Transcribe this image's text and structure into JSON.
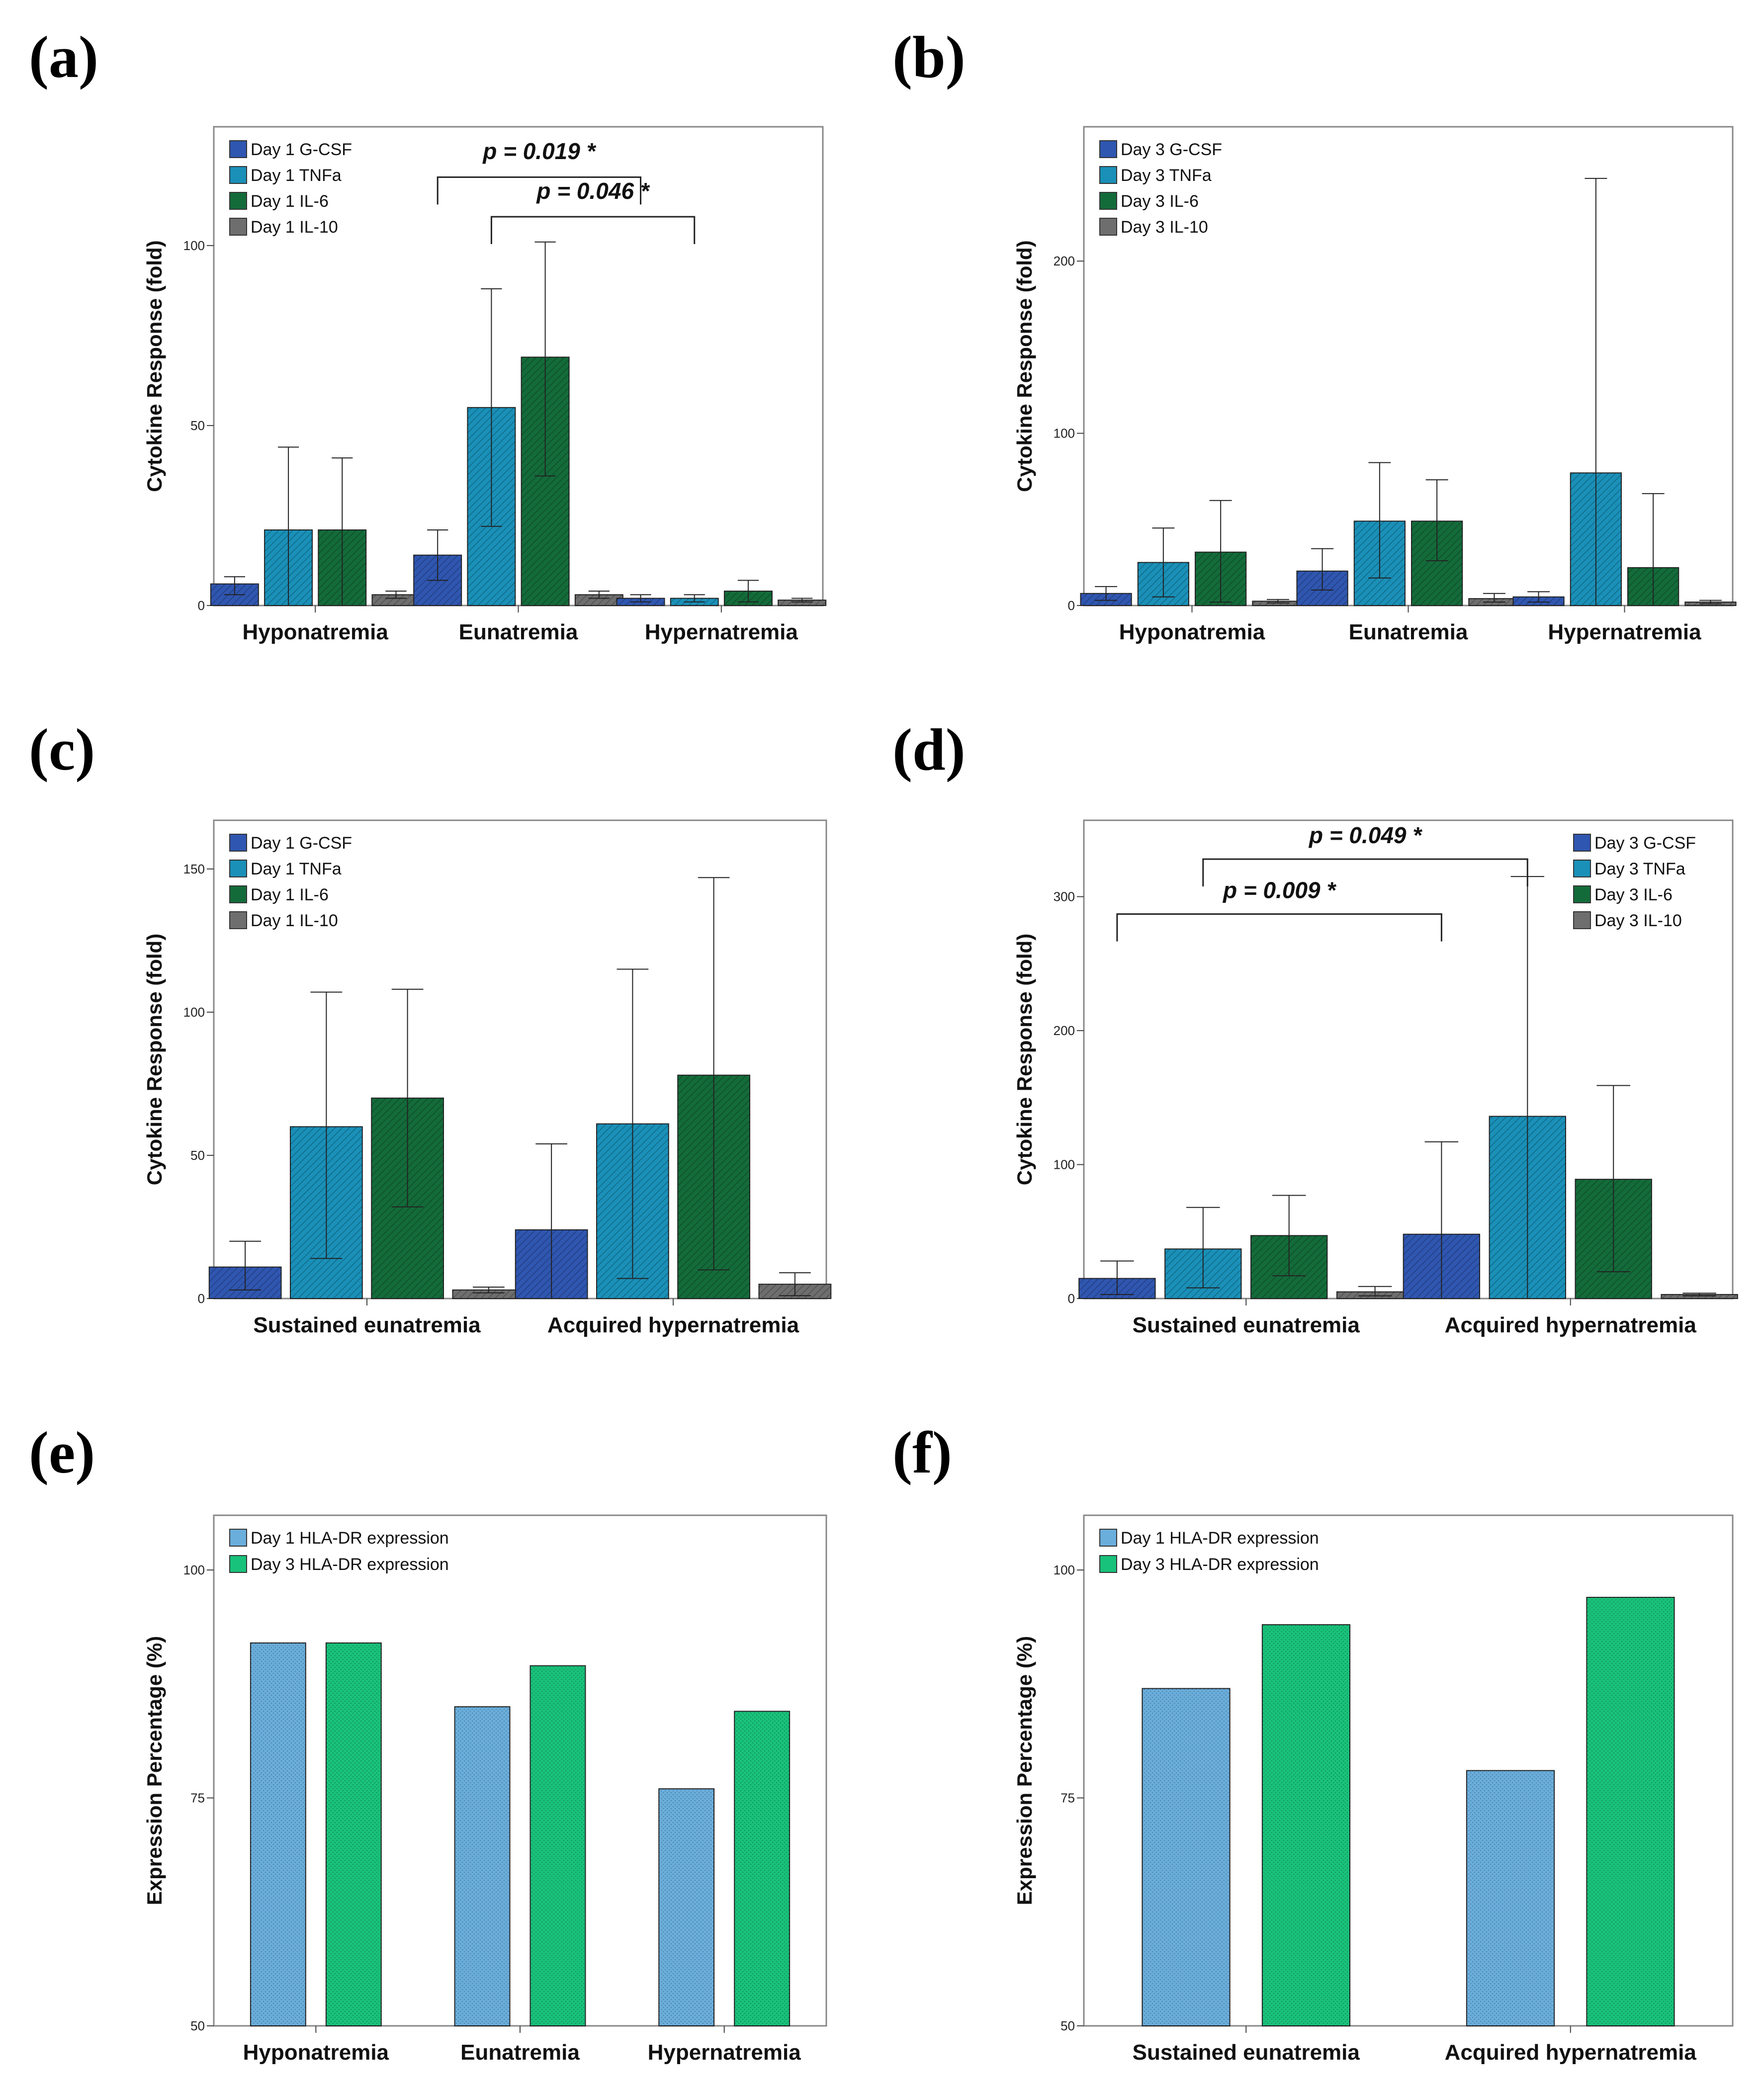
{
  "colors": {
    "gcsf": "#2f56b0",
    "tnfa": "#1a90b8",
    "il6": "#146b3a",
    "il10": "#6e6e6e",
    "hla_day1": "#6aaedc",
    "hla_day3": "#19c27a"
  },
  "chart_data": [
    {
      "id": "a",
      "panel_label": "(a)",
      "type": "bar",
      "title": "",
      "xlabel": "",
      "ylabel": "Cytokine Response (fold)",
      "ylim": [
        0,
        133
      ],
      "yticks": [
        0,
        50,
        100
      ],
      "categories": [
        "Hyponatremia",
        "Eunatremia",
        "Hypernatremia"
      ],
      "legend_position": "top-left",
      "series": [
        {
          "name": "Day 1 G-CSF",
          "color_key": "gcsf",
          "values": [
            6,
            14,
            2
          ],
          "err_low": [
            3,
            7,
            1
          ],
          "err_high": [
            8,
            21,
            3
          ]
        },
        {
          "name": "Day 1 TNFa",
          "color_key": "tnfa",
          "values": [
            21,
            55,
            2
          ],
          "err_low": [
            0,
            22,
            1
          ],
          "err_high": [
            44,
            88,
            3
          ]
        },
        {
          "name": "Day 1 IL-6",
          "color_key": "il6",
          "values": [
            21,
            69,
            4
          ],
          "err_low": [
            0,
            36,
            1
          ],
          "err_high": [
            41,
            101,
            7
          ]
        },
        {
          "name": "Day 1 IL-10",
          "color_key": "il10",
          "values": [
            3,
            3,
            1.5
          ],
          "err_low": [
            2,
            2,
            1
          ],
          "err_high": [
            4,
            4,
            2
          ]
        }
      ],
      "annotations": [
        {
          "text": "p = 0.019 *",
          "from": [
            1,
            0
          ],
          "to": [
            2,
            0
          ],
          "bracket_y": 119,
          "text_y": 124
        },
        {
          "text": "p = 0.046 *",
          "from": [
            1,
            1
          ],
          "to": [
            2,
            1
          ],
          "bracket_y": 108,
          "text_y": 113
        }
      ]
    },
    {
      "id": "b",
      "panel_label": "(b)",
      "type": "bar",
      "title": "",
      "xlabel": "",
      "ylabel": "Cytokine Response (fold)",
      "ylim": [
        0,
        278
      ],
      "yticks": [
        0,
        100,
        200
      ],
      "categories": [
        "Hyponatremia",
        "Eunatremia",
        "Hypernatremia"
      ],
      "legend_position": "top-left",
      "series": [
        {
          "name": "Day 3 G-CSF",
          "color_key": "gcsf",
          "values": [
            7,
            20,
            5
          ],
          "err_low": [
            3,
            9,
            2
          ],
          "err_high": [
            11,
            33,
            8
          ]
        },
        {
          "name": "Day 3 TNFa",
          "color_key": "tnfa",
          "values": [
            25,
            49,
            77
          ],
          "err_low": [
            5,
            16,
            0
          ],
          "err_high": [
            45,
            83,
            248
          ]
        },
        {
          "name": "Day 3 IL-6",
          "color_key": "il6",
          "values": [
            31,
            49,
            22
          ],
          "err_low": [
            2,
            26,
            0
          ],
          "err_high": [
            61,
            73,
            65
          ]
        },
        {
          "name": "Day 3 IL-10",
          "color_key": "il10",
          "values": [
            2.5,
            4,
            2
          ],
          "err_low": [
            1.5,
            2,
            1
          ],
          "err_high": [
            3.5,
            7,
            3
          ]
        }
      ],
      "annotations": []
    },
    {
      "id": "c",
      "panel_label": "(c)",
      "type": "bar",
      "title": "",
      "xlabel": "",
      "ylabel": "Cytokine Response (fold)",
      "ylim": [
        0,
        167
      ],
      "yticks": [
        0,
        50,
        100,
        150
      ],
      "categories": [
        "Sustained eunatremia",
        "Acquired hypernatremia"
      ],
      "legend_position": "top-left",
      "series": [
        {
          "name": "Day 1 G-CSF",
          "color_key": "gcsf",
          "values": [
            11,
            24
          ],
          "err_low": [
            3,
            0
          ],
          "err_high": [
            20,
            54
          ]
        },
        {
          "name": "Day 1 TNFa",
          "color_key": "tnfa",
          "values": [
            60,
            61
          ],
          "err_low": [
            14,
            7
          ],
          "err_high": [
            107,
            115
          ]
        },
        {
          "name": "Day 1 IL-6",
          "color_key": "il6",
          "values": [
            70,
            78
          ],
          "err_low": [
            32,
            10
          ],
          "err_high": [
            108,
            147
          ]
        },
        {
          "name": "Day 1 IL-10",
          "color_key": "il10",
          "values": [
            3,
            5
          ],
          "err_low": [
            2,
            1
          ],
          "err_high": [
            4,
            9
          ]
        }
      ],
      "annotations": []
    },
    {
      "id": "d",
      "panel_label": "(d)",
      "type": "bar",
      "title": "",
      "xlabel": "",
      "ylabel": "Cytokine Response (fold)",
      "ylim": [
        0,
        357
      ],
      "yticks": [
        0,
        100,
        200,
        300
      ],
      "categories": [
        "Sustained eunatremia",
        "Acquired hypernatremia"
      ],
      "legend_position": "top-right",
      "series": [
        {
          "name": "Day 3 G-CSF",
          "color_key": "gcsf",
          "values": [
            15,
            48
          ],
          "err_low": [
            3,
            0
          ],
          "err_high": [
            28,
            117
          ]
        },
        {
          "name": "Day 3 TNFa",
          "color_key": "tnfa",
          "values": [
            37,
            136
          ],
          "err_low": [
            8,
            0
          ],
          "err_high": [
            68,
            315
          ]
        },
        {
          "name": "Day 3 IL-6",
          "color_key": "il6",
          "values": [
            47,
            89
          ],
          "err_low": [
            17,
            20
          ],
          "err_high": [
            77,
            159
          ]
        },
        {
          "name": "Day 3 IL-10",
          "color_key": "il10",
          "values": [
            5,
            3
          ],
          "err_low": [
            2,
            2
          ],
          "err_high": [
            9,
            4
          ]
        }
      ],
      "annotations": [
        {
          "text": "p = 0.049 *",
          "from": [
            0,
            1
          ],
          "to": [
            1,
            1
          ],
          "bracket_y": 328,
          "text_y": 340
        },
        {
          "text": "p = 0.009 *",
          "from": [
            0,
            0
          ],
          "to": [
            1,
            0
          ],
          "bracket_y": 287,
          "text_y": 299
        }
      ]
    },
    {
      "id": "e",
      "panel_label": "(e)",
      "type": "bar",
      "title": "",
      "xlabel": "",
      "ylabel": "Expression Percentage (%)",
      "ylim": [
        50,
        106
      ],
      "yticks": [
        50,
        75,
        100
      ],
      "categories": [
        "Hyponatremia",
        "Eunatremia",
        "Hypernatremia"
      ],
      "legend_position": "top-left",
      "series": [
        {
          "name": "Day 1 HLA-DR expression",
          "color_key": "hla_day1",
          "values": [
            92,
            85,
            76
          ]
        },
        {
          "name": "Day 3 HLA-DR expression",
          "color_key": "hla_day3",
          "values": [
            92,
            89.5,
            84.5
          ]
        }
      ],
      "annotations": []
    },
    {
      "id": "f",
      "panel_label": "(f)",
      "type": "bar",
      "title": "",
      "xlabel": "",
      "ylabel": "Expression Percentage (%)",
      "ylim": [
        50,
        106
      ],
      "yticks": [
        50,
        75,
        100
      ],
      "categories": [
        "Sustained eunatremia",
        "Acquired hypernatremia"
      ],
      "legend_position": "top-left",
      "series": [
        {
          "name": "Day 1 HLA-DR expression",
          "color_key": "hla_day1",
          "values": [
            87,
            78
          ]
        },
        {
          "name": "Day 3 HLA-DR expression",
          "color_key": "hla_day3",
          "values": [
            94,
            97
          ]
        }
      ],
      "annotations": []
    }
  ]
}
